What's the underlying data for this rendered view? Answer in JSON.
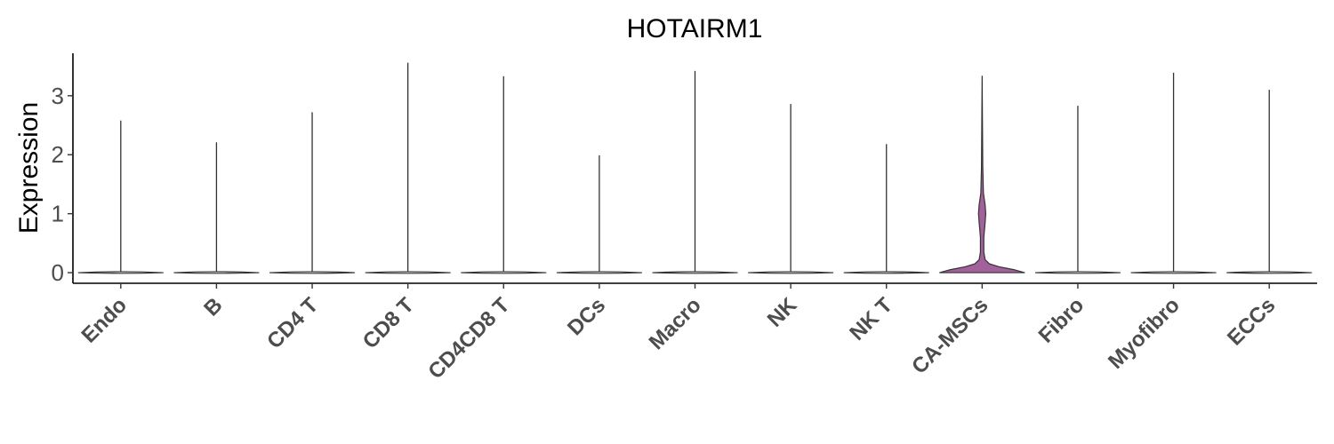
{
  "chart_data": {
    "type": "violin",
    "title": "HOTAIRM1",
    "xlabel": "",
    "ylabel": "Expression",
    "ylim": [
      -0.18,
      3.72
    ],
    "yticks": [
      0,
      1,
      2,
      3
    ],
    "grid": false,
    "legend": "none",
    "categories": [
      "Endo",
      "B",
      "CD4 T",
      "CD8 T",
      "CD4CD8 T",
      "DCs",
      "Macro",
      "NK",
      "NK T",
      "CA-MSCs",
      "Fibro",
      "Myofibro",
      "ECCs"
    ],
    "max_values": [
      2.58,
      2.21,
      2.72,
      3.56,
      3.33,
      1.99,
      3.42,
      2.86,
      2.18,
      3.34,
      2.83,
      3.39,
      3.1
    ],
    "fill_colors": [
      "#ffffff",
      "#ffffff",
      "#ffffff",
      "#ffffff",
      "#ffffff",
      "#ffffff",
      "#ffffff",
      "#ffffff",
      "#ffffff",
      "#a2619a",
      "#ffffff",
      "#ffffff",
      "#ffffff"
    ],
    "highlight": {
      "category": "CA-MSCs",
      "color": "#a2619a",
      "density": [
        [
          0,
          1.0
        ],
        [
          0.05,
          0.75
        ],
        [
          0.1,
          0.4
        ],
        [
          0.15,
          0.17
        ],
        [
          0.22,
          0.07
        ],
        [
          0.35,
          0.04
        ],
        [
          0.6,
          0.04
        ],
        [
          0.85,
          0.07
        ],
        [
          1.0,
          0.085
        ],
        [
          1.15,
          0.07
        ],
        [
          1.35,
          0.03
        ],
        [
          1.8,
          0.015
        ],
        [
          2.5,
          0.008
        ],
        [
          3.34,
          0.0
        ]
      ]
    }
  }
}
